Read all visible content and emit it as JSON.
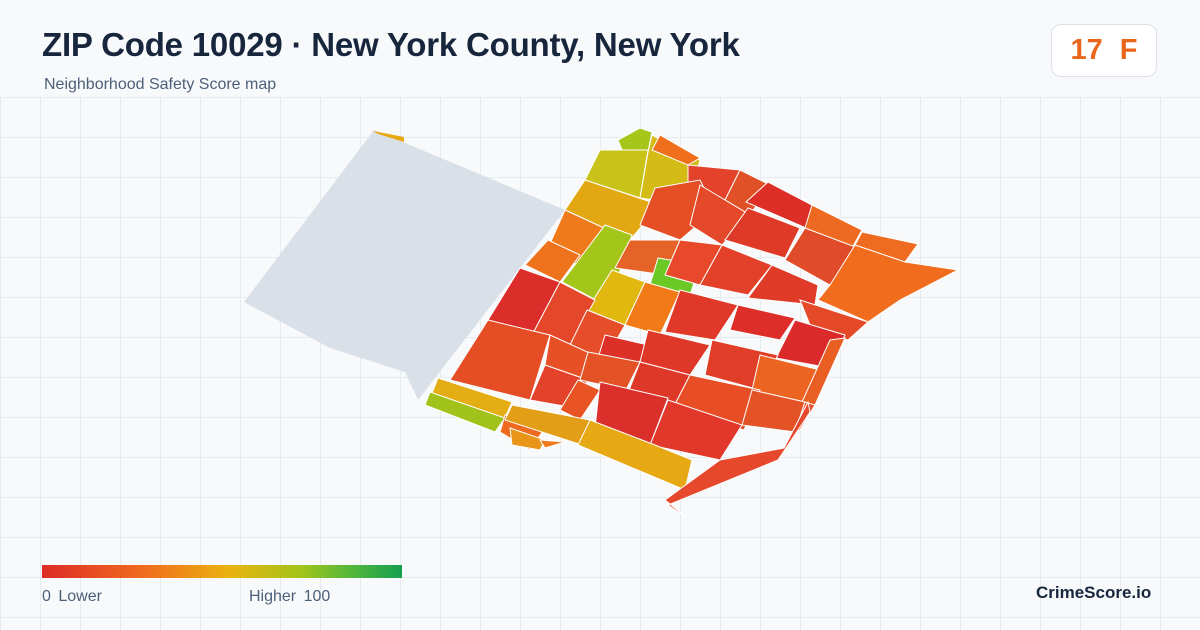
{
  "header": {
    "title": "ZIP Code 10029 · New York County, New York",
    "subtitle": "Neighborhood Safety Score map"
  },
  "score": {
    "value": "17",
    "grade": "F",
    "color": "#e8661b"
  },
  "legend": {
    "min_label": "0  Lower",
    "max_label": "Higher  100",
    "min_value": 0,
    "max_value": 100,
    "colors": [
      "#dd2c26",
      "#f06b1e",
      "#eab30f",
      "#a2c41a",
      "#169e4f"
    ]
  },
  "brand": "CrimeScore.io",
  "map": {
    "park_color": "#d9e0e8",
    "block_border_color": "#ffffff"
  }
}
